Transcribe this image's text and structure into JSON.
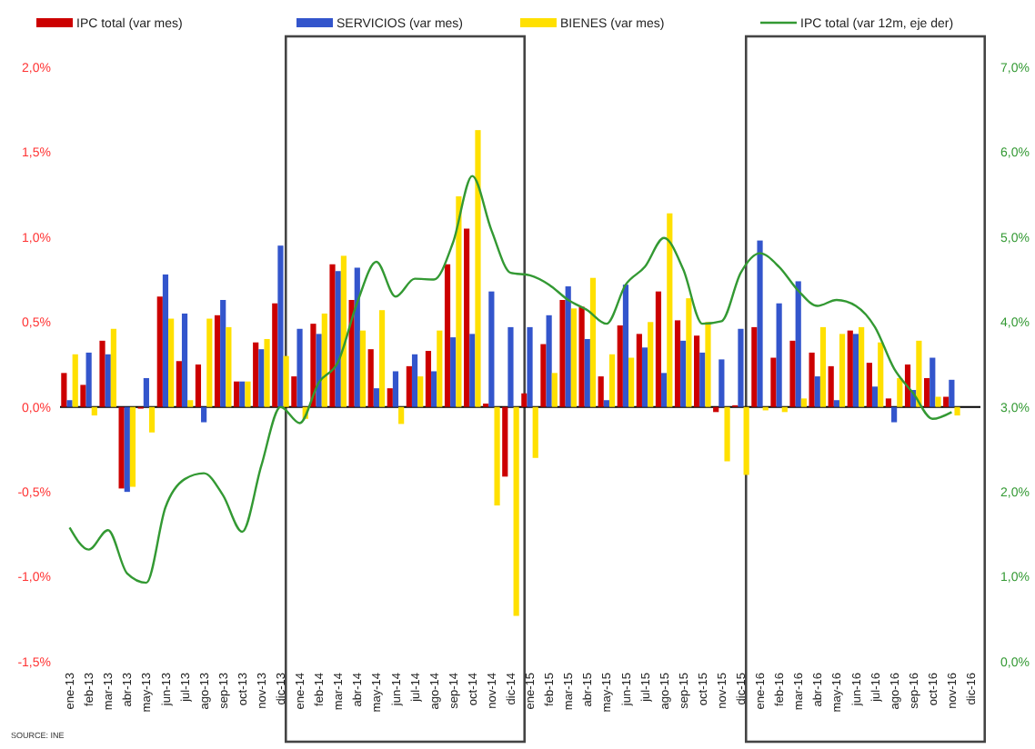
{
  "chart_data": {
    "type": "bar",
    "categories": [
      "ene-13",
      "feb-13",
      "mar-13",
      "abr-13",
      "may-13",
      "jun-13",
      "jul-13",
      "ago-13",
      "sep-13",
      "oct-13",
      "nov-13",
      "dic-13",
      "ene-14",
      "feb-14",
      "mar-14",
      "abr-14",
      "may-14",
      "jun-14",
      "jul-14",
      "ago-14",
      "sep-14",
      "oct-14",
      "nov-14",
      "dic-14",
      "ene-15",
      "feb-15",
      "mar-15",
      "abr-15",
      "may-15",
      "jun-15",
      "jul-15",
      "ago-15",
      "sep-15",
      "oct-15",
      "nov-15",
      "dic-15",
      "ene-16",
      "feb-16",
      "mar-16",
      "abr-16",
      "may-16",
      "jun-16",
      "jul-16",
      "ago-16",
      "sep-16",
      "oct-16",
      "nov-16",
      "dic-16"
    ],
    "series": [
      {
        "name": "IPC total (var mes)",
        "color": "#cc0000",
        "values": [
          0.2,
          0.13,
          0.39,
          -0.48,
          -0.01,
          0.65,
          0.27,
          0.25,
          0.54,
          0.15,
          0.38,
          0.61,
          0.18,
          0.49,
          0.84,
          0.63,
          0.34,
          0.11,
          0.24,
          0.33,
          0.84,
          1.05,
          0.02,
          -0.41,
          0.08,
          0.37,
          0.63,
          0.59,
          0.18,
          0.48,
          0.43,
          0.68,
          0.51,
          0.42,
          -0.03,
          0.01,
          0.47,
          0.29,
          0.39,
          0.32,
          0.24,
          0.45,
          0.26,
          0.05,
          0.25,
          0.17,
          0.06,
          null
        ]
      },
      {
        "name": "SERVICIOS (var mes)",
        "color": "#3355cc",
        "values": [
          0.04,
          0.32,
          0.31,
          -0.5,
          0.17,
          0.78,
          0.55,
          -0.09,
          0.63,
          0.15,
          0.34,
          0.95,
          0.46,
          0.43,
          0.8,
          0.82,
          0.11,
          0.21,
          0.31,
          0.21,
          0.41,
          0.43,
          0.68,
          0.47,
          0.47,
          0.54,
          0.71,
          0.4,
          0.04,
          0.72,
          0.35,
          0.2,
          0.39,
          0.32,
          0.28,
          0.46,
          0.98,
          0.61,
          0.74,
          0.18,
          0.04,
          0.43,
          0.12,
          -0.09,
          0.1,
          0.29,
          0.16,
          null
        ]
      },
      {
        "name": "BIENES (var mes)",
        "color": "#ffe000",
        "values": [
          0.31,
          -0.05,
          0.46,
          -0.47,
          -0.15,
          0.52,
          0.04,
          0.52,
          0.47,
          0.15,
          0.4,
          0.3,
          -0.07,
          0.55,
          0.89,
          0.45,
          0.57,
          -0.1,
          0.18,
          0.45,
          1.24,
          1.63,
          -0.58,
          -1.23,
          -0.3,
          0.2,
          0.58,
          0.76,
          0.31,
          0.29,
          0.5,
          1.14,
          0.64,
          0.5,
          -0.32,
          -0.4,
          -0.02,
          -0.03,
          0.05,
          0.47,
          0.43,
          0.47,
          0.38,
          0.17,
          0.39,
          0.06,
          -0.05,
          null
        ]
      },
      {
        "name": "IPC total (var 12m, eje der)",
        "type": "line",
        "axis": "y2",
        "color": "#339933",
        "values": [
          1.58,
          1.32,
          1.55,
          1.04,
          0.93,
          1.82,
          2.15,
          2.22,
          1.96,
          1.53,
          2.31,
          3.0,
          2.81,
          3.29,
          3.53,
          4.23,
          4.71,
          4.3,
          4.51,
          4.5,
          4.94,
          5.72,
          5.08,
          4.58,
          4.55,
          4.44,
          4.26,
          4.14,
          3.98,
          4.44,
          4.65,
          4.99,
          4.62,
          3.98,
          4.01,
          4.58,
          4.81,
          4.65,
          4.37,
          4.19,
          4.26,
          4.19,
          3.94,
          3.45,
          3.16,
          2.86,
          2.94,
          null
        ]
      }
    ],
    "ylim": [
      -1.5,
      2.0
    ],
    "yticks": [
      {
        "value": -1.5,
        "label": "-1,5%"
      },
      {
        "value": -1.0,
        "label": "-1,0%"
      },
      {
        "value": -0.5,
        "label": "-0,5%"
      },
      {
        "value": 0,
        "label": "0,0%"
      },
      {
        "value": 0.5,
        "label": "0,5%"
      },
      {
        "value": 1.0,
        "label": "1,0%"
      },
      {
        "value": 1.5,
        "label": "1,5%"
      },
      {
        "value": 2.0,
        "label": "2,0%"
      }
    ],
    "y2lim": [
      0,
      7
    ],
    "y2ticks": [
      {
        "value": 0,
        "label": "0,0%"
      },
      {
        "value": 1,
        "label": "1,0%"
      },
      {
        "value": 2,
        "label": "2,0%"
      },
      {
        "value": 3,
        "label": "3,0%"
      },
      {
        "value": 4,
        "label": "4,0%"
      },
      {
        "value": 5,
        "label": "5,0%"
      },
      {
        "value": 6,
        "label": "6,0%"
      },
      {
        "value": 7,
        "label": "7,0%"
      }
    ],
    "legend": "top",
    "annotations": [
      "SOURCE: INE"
    ]
  }
}
